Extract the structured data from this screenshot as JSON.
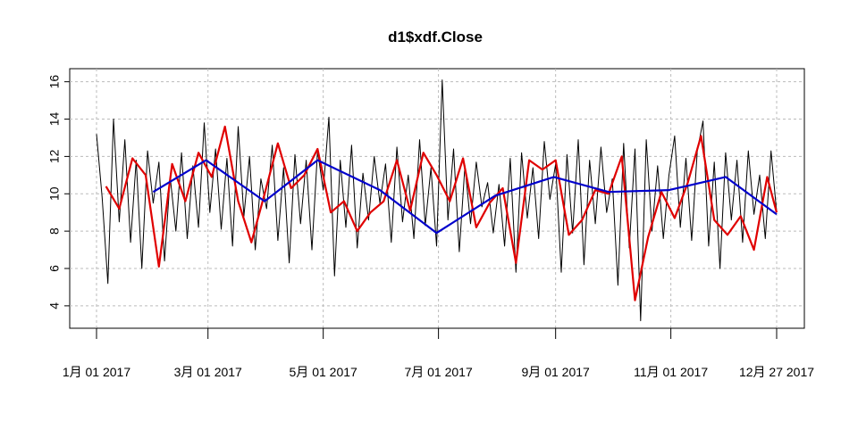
{
  "chart_data": {
    "type": "line",
    "title": "d1$xdf.Close",
    "xlim": [
      "2017-01-01",
      "2017-12-27"
    ],
    "xticks": [
      {
        "value": "2017-01-01",
        "label": "1月 01 2017"
      },
      {
        "value": "2017-03-01",
        "label": "3月 01 2017"
      },
      {
        "value": "2017-05-01",
        "label": "5月 01 2017"
      },
      {
        "value": "2017-07-01",
        "label": "7月 01 2017"
      },
      {
        "value": "2017-09-01",
        "label": "9月 01 2017"
      },
      {
        "value": "2017-11-01",
        "label": "11月 01 2017"
      },
      {
        "value": "2017-12-27",
        "label": "12月 27 2017"
      }
    ],
    "ylim": [
      2.8,
      16.7
    ],
    "yticks": [
      4,
      6,
      8,
      10,
      12,
      14,
      16
    ],
    "grid": true,
    "series": [
      {
        "color": "#000000",
        "width": 1,
        "x": [
          "2017-01-01",
          "2017-01-04",
          "2017-01-07",
          "2017-01-10",
          "2017-01-13",
          "2017-01-16",
          "2017-01-19",
          "2017-01-22",
          "2017-01-25",
          "2017-01-28",
          "2017-01-31",
          "2017-02-03",
          "2017-02-06",
          "2017-02-09",
          "2017-02-12",
          "2017-02-15",
          "2017-02-18",
          "2017-02-21",
          "2017-02-24",
          "2017-02-27",
          "2017-03-02",
          "2017-03-05",
          "2017-03-08",
          "2017-03-11",
          "2017-03-14",
          "2017-03-17",
          "2017-03-20",
          "2017-03-23",
          "2017-03-26",
          "2017-03-29",
          "2017-04-01",
          "2017-04-04",
          "2017-04-07",
          "2017-04-10",
          "2017-04-13",
          "2017-04-16",
          "2017-04-19",
          "2017-04-22",
          "2017-04-25",
          "2017-04-28",
          "2017-05-01",
          "2017-05-04",
          "2017-05-07",
          "2017-05-10",
          "2017-05-13",
          "2017-05-16",
          "2017-05-19",
          "2017-05-22",
          "2017-05-25",
          "2017-05-28",
          "2017-05-31",
          "2017-06-03",
          "2017-06-06",
          "2017-06-09",
          "2017-06-12",
          "2017-06-15",
          "2017-06-18",
          "2017-06-21",
          "2017-06-24",
          "2017-06-27",
          "2017-06-30",
          "2017-07-03",
          "2017-07-06",
          "2017-07-09",
          "2017-07-12",
          "2017-07-15",
          "2017-07-18",
          "2017-07-21",
          "2017-07-24",
          "2017-07-27",
          "2017-07-30",
          "2017-08-02",
          "2017-08-05",
          "2017-08-08",
          "2017-08-11",
          "2017-08-14",
          "2017-08-17",
          "2017-08-20",
          "2017-08-23",
          "2017-08-26",
          "2017-08-29",
          "2017-09-01",
          "2017-09-04",
          "2017-09-07",
          "2017-09-10",
          "2017-09-13",
          "2017-09-16",
          "2017-09-19",
          "2017-09-22",
          "2017-09-25",
          "2017-09-28",
          "2017-10-01",
          "2017-10-04",
          "2017-10-07",
          "2017-10-10",
          "2017-10-13",
          "2017-10-16",
          "2017-10-19",
          "2017-10-22",
          "2017-10-25",
          "2017-10-28",
          "2017-10-31",
          "2017-11-03",
          "2017-11-06",
          "2017-11-09",
          "2017-11-12",
          "2017-11-15",
          "2017-11-18",
          "2017-11-21",
          "2017-11-24",
          "2017-11-27",
          "2017-11-30",
          "2017-12-03",
          "2017-12-06",
          "2017-12-09",
          "2017-12-12",
          "2017-12-15",
          "2017-12-18",
          "2017-12-21",
          "2017-12-24",
          "2017-12-27"
        ],
        "values": [
          13.2,
          9.8,
          5.2,
          14.0,
          8.5,
          12.9,
          7.4,
          11.8,
          6.0,
          12.3,
          9.5,
          11.7,
          6.4,
          10.9,
          8.0,
          12.2,
          7.6,
          11.5,
          8.2,
          13.8,
          9.0,
          12.4,
          8.1,
          11.9,
          7.2,
          13.6,
          8.8,
          12.0,
          7.0,
          10.8,
          9.2,
          12.6,
          7.5,
          11.4,
          6.3,
          12.1,
          8.4,
          11.8,
          7.0,
          12.3,
          10.2,
          14.1,
          5.6,
          11.8,
          8.2,
          12.6,
          7.1,
          11.1,
          8.6,
          12.0,
          9.5,
          11.6,
          7.4,
          12.5,
          8.5,
          11.0,
          7.6,
          12.9,
          8.3,
          11.4,
          7.2,
          16.1,
          8.6,
          12.4,
          6.9,
          11.5,
          8.4,
          11.7,
          9.3,
          10.6,
          7.9,
          10.5,
          7.2,
          11.9,
          5.8,
          12.2,
          8.7,
          11.4,
          7.6,
          12.8,
          9.7,
          11.6,
          5.8,
          12.1,
          7.9,
          12.9,
          6.2,
          11.8,
          8.4,
          12.5,
          9.0,
          10.8,
          5.1,
          12.7,
          7.1,
          12.4,
          3.2,
          12.9,
          8.0,
          11.5,
          7.6,
          11.0,
          13.1,
          8.2,
          11.9,
          7.5,
          12.3,
          13.9,
          7.2,
          11.7,
          6.0,
          12.2,
          8.6,
          11.8,
          7.4,
          12.3,
          8.9,
          11.0,
          7.6,
          12.3,
          9.0
        ]
      },
      {
        "color": "#e00000",
        "width": 2.2,
        "x": [
          "2017-01-06",
          "2017-01-13",
          "2017-01-20",
          "2017-01-27",
          "2017-02-03",
          "2017-02-10",
          "2017-02-17",
          "2017-02-24",
          "2017-03-03",
          "2017-03-10",
          "2017-03-17",
          "2017-03-24",
          "2017-03-31",
          "2017-04-07",
          "2017-04-14",
          "2017-04-21",
          "2017-04-28",
          "2017-05-05",
          "2017-05-12",
          "2017-05-19",
          "2017-05-26",
          "2017-06-02",
          "2017-06-09",
          "2017-06-16",
          "2017-06-23",
          "2017-06-30",
          "2017-07-07",
          "2017-07-14",
          "2017-07-21",
          "2017-07-28",
          "2017-08-04",
          "2017-08-11",
          "2017-08-18",
          "2017-08-25",
          "2017-09-01",
          "2017-09-08",
          "2017-09-15",
          "2017-09-22",
          "2017-09-29",
          "2017-10-06",
          "2017-10-13",
          "2017-10-20",
          "2017-10-27",
          "2017-11-03",
          "2017-11-10",
          "2017-11-17",
          "2017-11-24",
          "2017-12-01",
          "2017-12-08",
          "2017-12-15",
          "2017-12-22",
          "2017-12-27"
        ],
        "values": [
          10.4,
          9.2,
          11.9,
          11.0,
          6.1,
          11.6,
          9.6,
          12.2,
          10.9,
          13.6,
          9.6,
          7.4,
          10.0,
          12.7,
          10.3,
          11.0,
          12.4,
          9.0,
          9.6,
          8.0,
          9.0,
          9.6,
          11.8,
          9.1,
          12.2,
          11.0,
          9.6,
          11.9,
          8.2,
          9.5,
          10.3,
          6.3,
          11.8,
          11.3,
          11.8,
          7.8,
          8.6,
          10.2,
          10.0,
          12.0,
          4.3,
          7.7,
          10.1,
          8.7,
          10.6,
          13.1,
          8.6,
          7.8,
          8.8,
          7.0,
          10.9,
          9.0
        ]
      },
      {
        "color": "#0000cc",
        "width": 2.2,
        "x": [
          "2017-01-31",
          "2017-02-28",
          "2017-03-31",
          "2017-04-28",
          "2017-05-31",
          "2017-06-30",
          "2017-07-31",
          "2017-08-31",
          "2017-09-29",
          "2017-10-31",
          "2017-11-30",
          "2017-12-27"
        ],
        "values": [
          10.1,
          11.8,
          9.6,
          11.8,
          10.2,
          7.9,
          9.9,
          10.9,
          10.1,
          10.2,
          10.9,
          8.9
        ]
      }
    ]
  }
}
